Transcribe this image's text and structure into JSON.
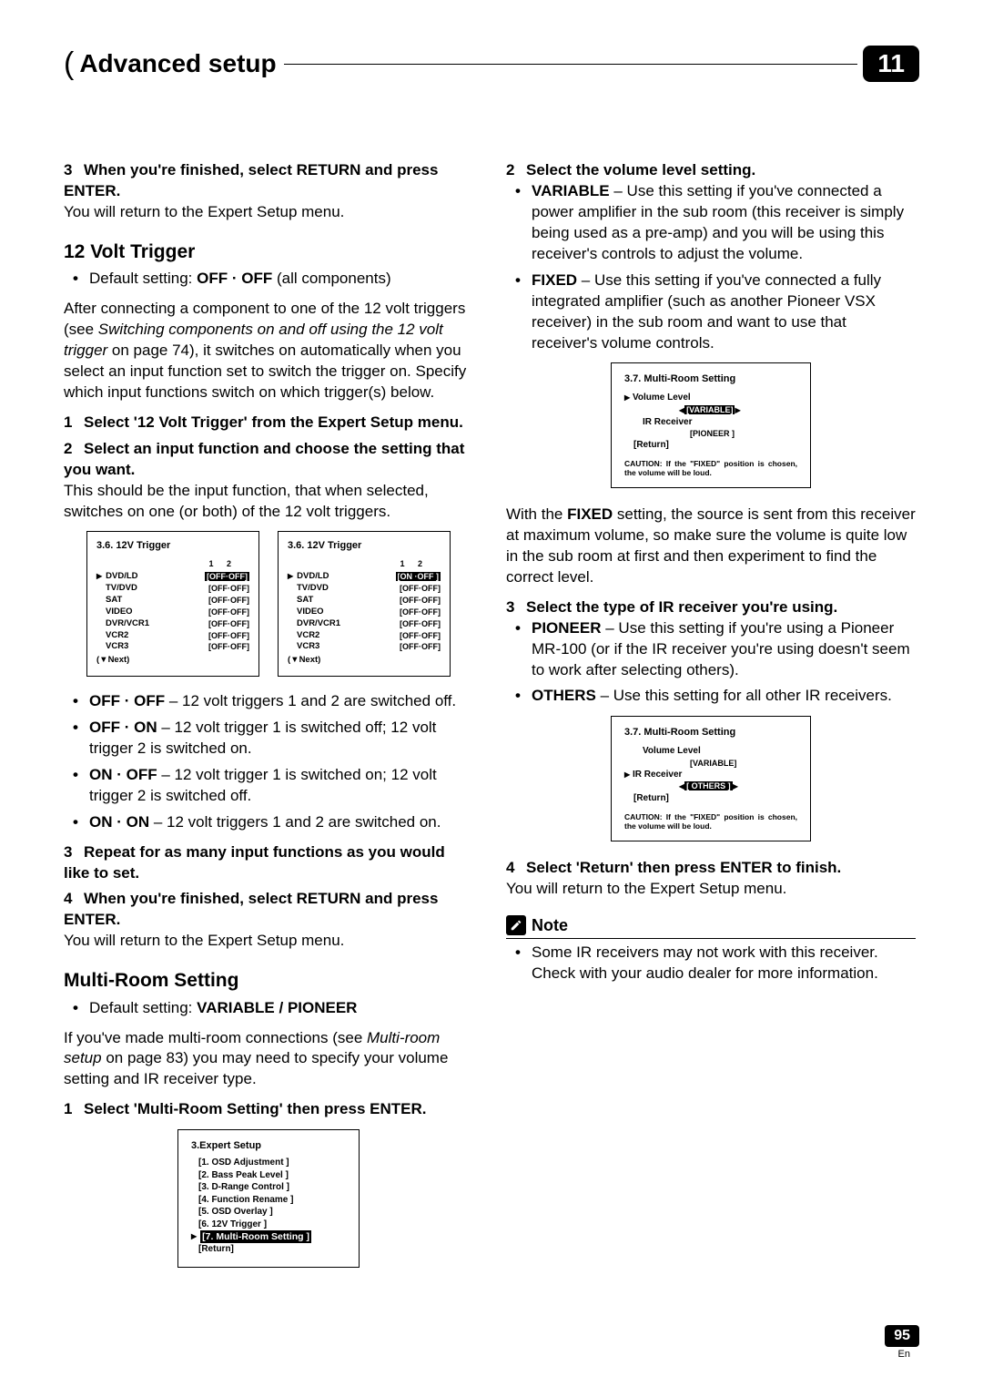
{
  "header": {
    "title": "Advanced setup",
    "chapter": "11"
  },
  "page": {
    "number": "95",
    "lang": "En"
  },
  "left": {
    "step3a": {
      "num": "3",
      "head": "When you're finished, select RETURN and press ENTER.",
      "body": "You will return to the Expert Setup menu."
    },
    "trigger": {
      "heading": "12 Volt Trigger",
      "default_label": "Default setting:",
      "default_value": "OFF · OFF",
      "default_suffix": "(all components)",
      "intro1": "After connecting a component to one of the 12 volt triggers (see ",
      "intro_italic": "Switching components on and off using the 12 volt trigger",
      "intro2": " on page 74), it switches on automatically when you select an input function set to switch the trigger on. Specify which input functions switch on which trigger(s) below.",
      "s1": {
        "num": "1",
        "head": "Select '12 Volt Trigger' from the Expert Setup menu."
      },
      "s2": {
        "num": "2",
        "head": "Select an input function and choose the setting that you want.",
        "body": "This should be the input function, that when selected, switches on one (or both) of the 12 volt triggers."
      },
      "osd": {
        "title": "3.6. 12V Trigger",
        "cols": "1   2",
        "rows": [
          {
            "name": "DVD/LD",
            "v1": "[OFF·OFF]",
            "v2": "[ON  ·OFF ]",
            "sel": true
          },
          {
            "name": "TV/DVD",
            "v1": "[OFF·OFF]",
            "v2": "[OFF·OFF]"
          },
          {
            "name": "SAT",
            "v1": "[OFF·OFF]",
            "v2": "[OFF·OFF]"
          },
          {
            "name": "VIDEO",
            "v1": "[OFF·OFF]",
            "v2": "[OFF·OFF]"
          },
          {
            "name": "DVR/VCR1",
            "v1": "[OFF·OFF]",
            "v2": "[OFF·OFF]"
          },
          {
            "name": "VCR2",
            "v1": "[OFF·OFF]",
            "v2": "[OFF·OFF]"
          },
          {
            "name": "VCR3",
            "v1": "[OFF·OFF]",
            "v2": "[OFF·OFF]"
          }
        ],
        "next": "(▼Next)"
      },
      "options": [
        {
          "k": "OFF · OFF",
          "v": " – 12 volt triggers 1 and 2 are switched off."
        },
        {
          "k": "OFF · ON",
          "v": " – 12 volt trigger 1 is switched off; 12 volt trigger 2 is switched on."
        },
        {
          "k": "ON · OFF",
          "v": " – 12 volt trigger 1 is switched on; 12 volt trigger 2 is switched off."
        },
        {
          "k": "ON · ON",
          "v": " – 12 volt triggers 1 and 2 are switched on."
        }
      ],
      "s3": {
        "num": "3",
        "head": "Repeat for as many input functions as you would like to set."
      },
      "s4": {
        "num": "4",
        "head": "When you're finished, select RETURN and press ENTER.",
        "body": "You will return to the Expert Setup menu."
      }
    },
    "multiroom": {
      "heading": "Multi-Room Setting",
      "default_label": "Default setting:",
      "default_value": "VARIABLE / PIONEER",
      "intro1": "If you've made multi-room connections (see ",
      "intro_italic": "Multi-room setup",
      "intro2": " on page 83) you may need to specify your volume setting and IR receiver type.",
      "s1": {
        "num": "1",
        "head": "Select 'Multi-Room Setting' then press ENTER."
      },
      "osd": {
        "title": "3.Expert Setup",
        "items": [
          "[1. OSD Adjustment ]",
          "[2. Bass Peak Level ]",
          "[3. D-Range Control ]",
          "[4. Function Rename ]",
          "[5. OSD Overlay ]",
          "[6. 12V Trigger ]"
        ],
        "sel": "[7. Multi-Room Setting ]",
        "return": "[Return]"
      }
    }
  },
  "right": {
    "s2": {
      "num": "2",
      "head": "Select the volume level setting.",
      "opts": [
        {
          "k": "VARIABLE",
          "v": " – Use this setting if you've connected a power amplifier in the sub room (this receiver is simply being used as a pre-amp) and you will be using this receiver's controls to adjust the volume."
        },
        {
          "k": "FIXED",
          "v": " – Use this setting if you've connected a fully integrated amplifier (such as another Pioneer VSX receiver) in the sub room and want to use that receiver's volume controls."
        }
      ]
    },
    "osd1": {
      "title": "3.7. Multi-Room Setting",
      "vol_label": "Volume Level",
      "vol_val": "[VARIABLE]",
      "ir_label": "IR Receiver",
      "ir_val": "[PIONEER ]",
      "return": "[Return]",
      "caution": "CAUTION: If the \"FIXED\" position is chosen, the volume will be loud."
    },
    "fixed_text1": "With the ",
    "fixed_bold": "FIXED",
    "fixed_text2": " setting, the source is sent from this receiver at maximum volume, so make sure the volume is quite low in the sub room at first and then experiment to find the correct level.",
    "s3": {
      "num": "3",
      "head": "Select the type of IR receiver you're using.",
      "opts": [
        {
          "k": "PIONEER",
          "v": " – Use this setting if you're using a Pioneer MR-100 (or if the IR receiver you're using doesn't seem to work after selecting others)."
        },
        {
          "k": "OTHERS",
          "v": " – Use this setting for all other IR receivers."
        }
      ]
    },
    "osd2": {
      "title": "3.7. Multi-Room Setting",
      "vol_label": "Volume Level",
      "vol_val": "[VARIABLE]",
      "ir_label": "IR Receiver",
      "ir_val": "[ OTHERS ]",
      "return": "[Return]",
      "caution": "CAUTION: If the \"FIXED\" position is chosen, the volume will be loud."
    },
    "s4": {
      "num": "4",
      "head": "Select 'Return' then press ENTER to finish.",
      "body": "You will return to the Expert Setup menu."
    },
    "note": {
      "label": "Note",
      "text": "Some IR receivers may not work with this receiver. Check with your audio dealer for more information."
    }
  }
}
